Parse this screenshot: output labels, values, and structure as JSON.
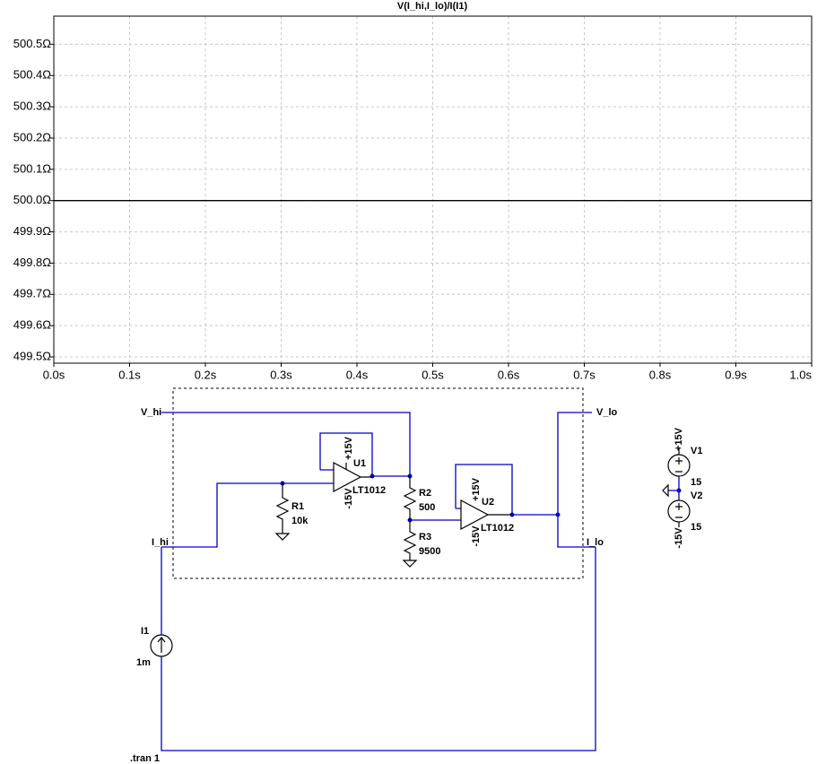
{
  "chart_data": {
    "type": "line",
    "title": "V(I_hi,I_lo)/I(I1)",
    "x": [
      0,
      1
    ],
    "series": [
      {
        "name": "V(I_hi,I_lo)/I(I1)",
        "color": "#000000",
        "values": [
          500,
          500
        ]
      }
    ],
    "xlim": [
      0,
      1
    ],
    "xticks": [
      {
        "value": 0,
        "label": "0.0s"
      },
      {
        "value": 0.1,
        "label": "0.1s"
      },
      {
        "value": 0.2,
        "label": "0.2s"
      },
      {
        "value": 0.3,
        "label": "0.3s"
      },
      {
        "value": 0.4,
        "label": "0.4s"
      },
      {
        "value": 0.5,
        "label": "0.5s"
      },
      {
        "value": 0.6,
        "label": "0.6s"
      },
      {
        "value": 0.7,
        "label": "0.7s"
      },
      {
        "value": 0.8,
        "label": "0.8s"
      },
      {
        "value": 0.9,
        "label": "0.9s"
      },
      {
        "value": 1,
        "label": "1.0s"
      }
    ],
    "ylim": [
      499.48,
      500.59
    ],
    "yticks": [
      {
        "value": 499.5,
        "label": "499.5Ω"
      },
      {
        "value": 499.6,
        "label": "499.6Ω"
      },
      {
        "value": 499.7,
        "label": "499.7Ω"
      },
      {
        "value": 499.8,
        "label": "499.8Ω"
      },
      {
        "value": 499.9,
        "label": "499.9Ω"
      },
      {
        "value": 500.0,
        "label": "500.0Ω"
      },
      {
        "value": 500.1,
        "label": "500.1Ω"
      },
      {
        "value": 500.2,
        "label": "500.2Ω"
      },
      {
        "value": 500.3,
        "label": "500.3Ω"
      },
      {
        "value": 500.4,
        "label": "500.4Ω"
      },
      {
        "value": 500.5,
        "label": "500.5Ω"
      }
    ],
    "grid": true
  },
  "schematic": {
    "net_labels": {
      "v_hi": "V_hi",
      "v_lo": "V_lo",
      "i_hi": "I_hi",
      "i_lo": "I_lo"
    },
    "power_labels": {
      "pos": "+15V",
      "neg": "-15V"
    },
    "components": {
      "U1": {
        "name": "U1",
        "model": "LT1012"
      },
      "U2": {
        "name": "U2",
        "model": "LT1012"
      },
      "R1": {
        "name": "R1",
        "value": "10k"
      },
      "R2": {
        "name": "R2",
        "value": "500"
      },
      "R3": {
        "name": "R3",
        "value": "9500"
      },
      "V1": {
        "name": "V1",
        "value": "15"
      },
      "V2": {
        "name": "V2",
        "value": "15"
      },
      "I1": {
        "name": "I1",
        "value": "1m"
      }
    },
    "directive": ".tran 1"
  }
}
